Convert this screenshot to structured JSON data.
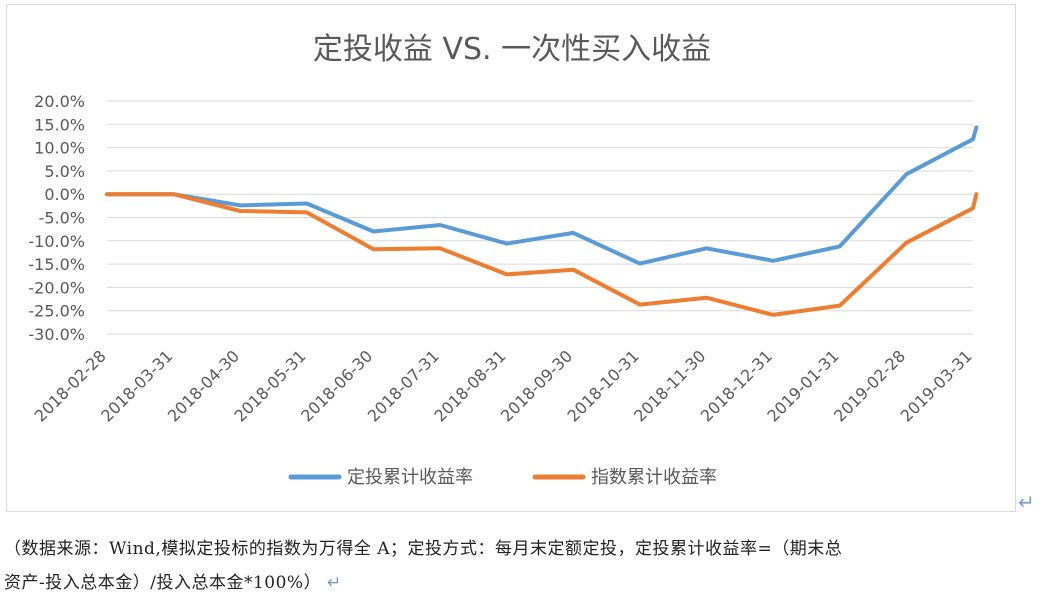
{
  "chart_data": {
    "type": "line",
    "title": "定投收益 VS. 一次性买入收益",
    "categories": [
      "2018-02-28",
      "2018-03-31",
      "2018-04-30",
      "2018-05-31",
      "2018-06-30",
      "2018-07-31",
      "2018-08-31",
      "2018-09-30",
      "2018-10-31",
      "2018-11-30",
      "2018-12-31",
      "2019-01-31",
      "2019-02-28",
      "2019-03-31"
    ],
    "y_ticks": [
      "20.0%",
      "15.0%",
      "10.0%",
      "5.0%",
      "0.0%",
      "-5.0%",
      "-10.0%",
      "-15.0%",
      "-20.0%",
      "-25.0%",
      "-30.0%"
    ],
    "ylim": [
      -30,
      20
    ],
    "series": [
      {
        "name": "定投累计收益率",
        "color": "#5b9bd5",
        "points": [
          [
            0,
            0
          ],
          [
            1,
            0
          ],
          [
            2,
            -2.4
          ],
          [
            3,
            -2.0
          ],
          [
            4,
            -8.0
          ],
          [
            5,
            -6.6
          ],
          [
            6,
            -10.6
          ],
          [
            7,
            -8.3
          ],
          [
            8,
            -14.9
          ],
          [
            9,
            -11.6
          ],
          [
            10,
            -14.3
          ],
          [
            11,
            -11.2
          ],
          [
            12,
            4.3
          ],
          [
            13,
            11.8
          ],
          [
            13.05,
            14.3
          ]
        ]
      },
      {
        "name": "指数累计收益率",
        "color": "#ed7d31",
        "points": [
          [
            0,
            0
          ],
          [
            1,
            0
          ],
          [
            2,
            -3.6
          ],
          [
            3,
            -3.9
          ],
          [
            4,
            -11.8
          ],
          [
            5,
            -11.6
          ],
          [
            6,
            -17.2
          ],
          [
            7,
            -16.2
          ],
          [
            8,
            -23.7
          ],
          [
            9,
            -22.2
          ],
          [
            10,
            -25.9
          ],
          [
            11,
            -23.9
          ],
          [
            12,
            -10.4
          ],
          [
            13,
            -3.0
          ],
          [
            13.05,
            0
          ]
        ]
      }
    ]
  },
  "caption": {
    "line1": "（数据来源：Wind,模拟定投标的指数为万得全 A；定投方式：每月末定额定投，定投累计收益率=（期末总",
    "line2": "资产-投入总本金）/投入总本金*100%）",
    "return_mark": "↵"
  }
}
